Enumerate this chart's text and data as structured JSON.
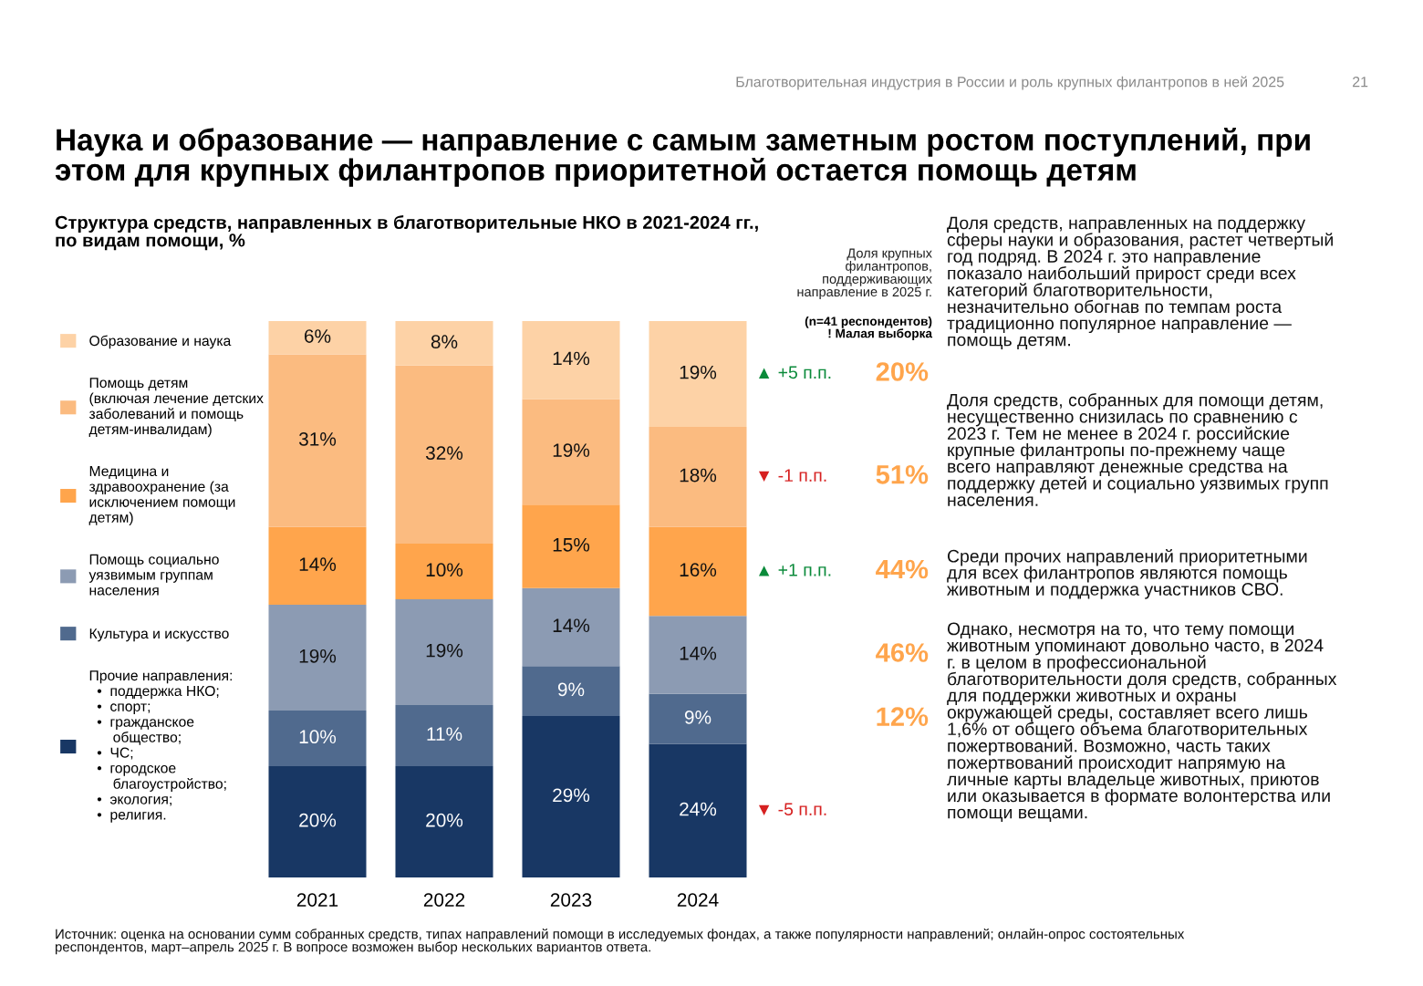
{
  "chart_data": {
    "type": "bar",
    "stacked": true,
    "legend": "left",
    "tick_labels": "x",
    "grid": false,
    "title": "Наука и образование — направление с самым заметным ростом поступлений, при\nэтом для крупных филантропов приоритетной остается помощь детям",
    "subtitle": "Структура средств, направленных в благотворительные НКО в 2021-2024 гг.,\nпо видам помощи, %",
    "categories": [
      "2021",
      "2022",
      "2023",
      "2024"
    ],
    "series": [
      {
        "name": "Прочие направления:\n  •  поддержка НКО;\n  •  спорт;\n  •  гражданское\n      общество;\n  •  ЧС;\n  •  городское\n      благоустройство;\n  •  экология;\n  •  религия.",
        "color": "#183764",
        "values": [
          20,
          20,
          29,
          24
        ],
        "value_labels": [
          "20%",
          "20%",
          "29%",
          "24%"
        ]
      },
      {
        "name": "Культура и искусство",
        "color": "#506a8e",
        "values": [
          10,
          11,
          9,
          9
        ],
        "value_labels": [
          "10%",
          "11%",
          "9%",
          "9%"
        ]
      },
      {
        "name": "Помощь социально\nуязвимым группам\nнаселения",
        "color": "#8c9bb3",
        "values": [
          19,
          19,
          14,
          14
        ],
        "value_labels": [
          "19%",
          "19%",
          "14%",
          "14%"
        ]
      },
      {
        "name": "Медицина и\nздравоохранение (за\nисключением помощи\nдетям)",
        "color": "#ffa54c",
        "values": [
          14,
          10,
          15,
          16
        ],
        "value_labels": [
          "14%",
          "10%",
          "15%",
          "16%"
        ]
      },
      {
        "name": "Помощь детям\n(включая лечение детских\nзаболеваний и помощь\nдетям-инвалидам)",
        "color": "#fbbb80",
        "values": [
          31,
          32,
          19,
          18
        ],
        "value_labels": [
          "31%",
          "32%",
          "19%",
          "18%"
        ]
      },
      {
        "name": "Образование и наука",
        "color": "#fdd2a6",
        "values": [
          6,
          8,
          14,
          19
        ],
        "value_labels": [
          "6%",
          "8%",
          "14%",
          "19%"
        ]
      }
    ],
    "annotations": [
      "Благотворительная индустрия в России и роль крупных филантропов в ней 2025",
      "21",
      "Доля крупных\nфилантропов,\nподдерживающих\nнаправление в 2025 г.",
      "(n=41 респондентов)\n! Малая выборка",
      "▲ +5 п.п.",
      "▼ -1 п.п.",
      "▲ +1 п.п.",
      "▼ -5 п.п.",
      "20%",
      "51%",
      "44%",
      "46%",
      "12%",
      "Доля средств, направленных на поддержку\nсферы науки и образования, растет четвертый\nгод подряд. В 2024 г. это направление\nпоказало наибольший прирост среди всех\nкатегорий благотворительности,\nнезначительно обогнав по темпам роста\nтрадиционно популярное направление —\nпомощь детям.",
      "Доля средств, собранных для помощи детям,\nнесущественно снизилась по сравнению с\n2023 г. Тем не менее в 2024 г. российские\nкрупные филантропы по-прежнему чаще\nвсего направляют денежные средства на\nподдержку детей и социально уязвимых групп\nнаселения.",
      "Среди прочих направлений приоритетными\nдля всех филантропов являются помощь\nживотным и поддержка участников СВО.",
      "Однако, несмотря на то, что тему помощи\nживотным упоминают довольно часто, в 2024\nг. в целом в профессиональной\nблаготворительности доля средств, собранных\nдля поддержки животных и охраны\nокружающей среды, составляет всего лишь\n1,6% от общего объема благотворительных\nпожертвований. Возможно, часть таких\nпожертвований происходит напрямую на\nличные карты владельце животных, приютов\nили оказывается в формате волонтерства или\nпомощи вещами.",
      "Источник: оценка на основании сумм собранных средств, типах направлений помощи в исследуемых фондах, а также популярности направлений; онлайн-опрос состоятельных\nреспондентов, март–апрель 2025 г. В вопросе возможен выбор нескольких вариантов ответа."
    ]
  }
}
